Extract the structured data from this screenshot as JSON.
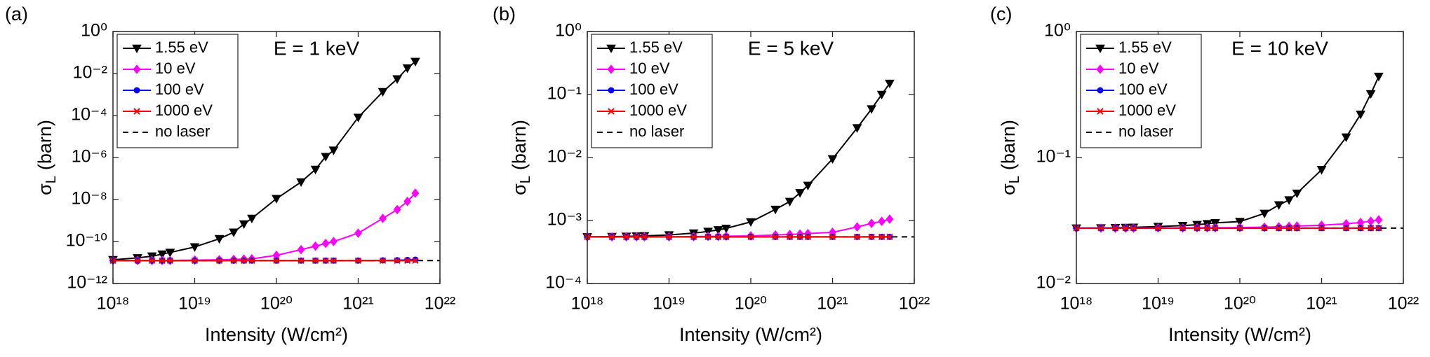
{
  "chart_data": [
    {
      "type": "line",
      "panel_label": "(a)",
      "annotation": "E = 1 keV",
      "xlabel": "Intensity (W/cm²)",
      "ylabel": {
        "symbol": "σ",
        "subscript": "L",
        "unit": "(barn)"
      },
      "xlog": true,
      "ylog": true,
      "legend": "upper left",
      "x": [
        1e+18,
        2e+18,
        3e+18,
        4e+18,
        5e+18,
        1e+19,
        2e+19,
        3e+19,
        4e+19,
        5e+19,
        1e+20,
        2e+20,
        3e+20,
        4e+20,
        5e+20,
        1e+21,
        2e+21,
        3e+21,
        4e+21,
        5e+21
      ],
      "xlim": [
        1e+18,
        1e+22
      ],
      "xticks": [
        {
          "value": 1e+18,
          "label": "10¹⁸"
        },
        {
          "value": 1e+19,
          "label": "10¹⁹"
        },
        {
          "value": 1e+20,
          "label": "10²⁰"
        },
        {
          "value": 1e+21,
          "label": "10²¹"
        },
        {
          "value": 1e+22,
          "label": "10²²"
        }
      ],
      "ylim": [
        1e-12,
        1
      ],
      "yticks": [
        {
          "value": 1e-12,
          "label": "10⁻¹²"
        },
        {
          "value": 1e-10,
          "label": "10⁻¹⁰"
        },
        {
          "value": 1e-08,
          "label": "10⁻⁸"
        },
        {
          "value": 1e-06,
          "label": "10⁻⁶"
        },
        {
          "value": 0.0001,
          "label": "10⁻⁴"
        },
        {
          "value": 0.01,
          "label": "10⁻²"
        },
        {
          "value": 1,
          "label": "10⁰"
        }
      ],
      "series": [
        {
          "name": "1.55 eV",
          "color": "#000000",
          "marker": "triangle-down",
          "values": [
            1.35e-11,
            1.66e-11,
            2e-11,
            2.5e-11,
            3e-11,
            5.5e-11,
            1.35e-10,
            2.75e-10,
            6.8e-10,
            1.26e-09,
            1.1e-08,
            6.8e-08,
            2.7e-07,
            1.1e-06,
            2.2e-06,
            8.1e-05,
            0.00135,
            0.0055,
            0.018,
            0.037
          ]
        },
        {
          "name": "10 eV",
          "color": "#ff00ff",
          "marker": "diamond",
          "values": [
            1.25e-11,
            1.25e-11,
            1.25e-11,
            1.25e-11,
            1.25e-11,
            1.3e-11,
            1.35e-11,
            1.4e-11,
            1.45e-11,
            1.5e-11,
            2.2e-11,
            4.1e-11,
            6e-11,
            8.1e-11,
            1e-10,
            2.5e-10,
            1.26e-09,
            3.3e-09,
            8.1e-09,
            2e-08
          ]
        },
        {
          "name": "100 eV",
          "color": "#0000ff",
          "marker": "circle",
          "values": [
            1.23e-11,
            1.23e-11,
            1.23e-11,
            1.23e-11,
            1.23e-11,
            1.23e-11,
            1.23e-11,
            1.23e-11,
            1.23e-11,
            1.23e-11,
            1.23e-11,
            1.23e-11,
            1.23e-11,
            1.23e-11,
            1.23e-11,
            1.24e-11,
            1.26e-11,
            1.28e-11,
            1.32e-11,
            1.36e-11
          ]
        },
        {
          "name": "1000 eV",
          "color": "#ff0000",
          "marker": "x",
          "values": [
            1.23e-11,
            1.23e-11,
            1.23e-11,
            1.23e-11,
            1.23e-11,
            1.23e-11,
            1.23e-11,
            1.23e-11,
            1.23e-11,
            1.23e-11,
            1.23e-11,
            1.23e-11,
            1.23e-11,
            1.23e-11,
            1.23e-11,
            1.23e-11,
            1.23e-11,
            1.23e-11,
            1.23e-11,
            1.23e-11
          ]
        }
      ],
      "reference": {
        "name": "no laser",
        "value": 1.23e-11,
        "color": "#000000",
        "style": "dashed"
      }
    },
    {
      "type": "line",
      "panel_label": "(b)",
      "annotation": "E = 5 keV",
      "xlabel": "Intensity (W/cm²)",
      "ylabel": {
        "symbol": "σ",
        "subscript": "L",
        "unit": "(barn)"
      },
      "xlog": true,
      "ylog": true,
      "legend": "upper left",
      "x": [
        1e+18,
        2e+18,
        3e+18,
        4e+18,
        5e+18,
        1e+19,
        2e+19,
        3e+19,
        4e+19,
        5e+19,
        1e+20,
        2e+20,
        3e+20,
        4e+20,
        5e+20,
        1e+21,
        2e+21,
        3e+21,
        4e+21,
        5e+21
      ],
      "xlim": [
        1e+18,
        1e+22
      ],
      "xticks": [
        {
          "value": 1e+18,
          "label": "10¹⁸"
        },
        {
          "value": 1e+19,
          "label": "10¹⁹"
        },
        {
          "value": 1e+20,
          "label": "10²⁰"
        },
        {
          "value": 1e+21,
          "label": "10²¹"
        },
        {
          "value": 1e+22,
          "label": "10²²"
        }
      ],
      "ylim": [
        0.0001,
        1
      ],
      "yticks": [
        {
          "value": 0.0001,
          "label": "10⁻⁴"
        },
        {
          "value": 0.001,
          "label": "10⁻³"
        },
        {
          "value": 0.01,
          "label": "10⁻²"
        },
        {
          "value": 0.1,
          "label": "10⁻¹"
        },
        {
          "value": 1,
          "label": "10⁰"
        }
      ],
      "series": [
        {
          "name": "1.55 eV",
          "color": "#000000",
          "marker": "triangle-down",
          "values": [
            0.00055,
            0.000555,
            0.00056,
            0.000565,
            0.00057,
            0.00059,
            0.00063,
            0.00067,
            0.00071,
            0.00075,
            0.00095,
            0.0015,
            0.002,
            0.00275,
            0.0036,
            0.0095,
            0.0295,
            0.059,
            0.1,
            0.15
          ]
        },
        {
          "name": "10 eV",
          "color": "#ff00ff",
          "marker": "diamond",
          "values": [
            0.00055,
            0.00055,
            0.00055,
            0.00055,
            0.00055,
            0.00055,
            0.000555,
            0.00056,
            0.00056,
            0.000565,
            0.00057,
            0.00059,
            0.0006,
            0.00061,
            0.00062,
            0.00065,
            0.00079,
            0.0009,
            0.00097,
            0.00105
          ]
        },
        {
          "name": "100 eV",
          "color": "#0000ff",
          "marker": "circle",
          "values": [
            0.00055,
            0.00055,
            0.00055,
            0.00055,
            0.00055,
            0.00055,
            0.00055,
            0.00055,
            0.00055,
            0.00055,
            0.00055,
            0.00055,
            0.00055,
            0.00055,
            0.00055,
            0.00055,
            0.00055,
            0.00055,
            0.00055,
            0.00055
          ]
        },
        {
          "name": "1000 eV",
          "color": "#ff0000",
          "marker": "x",
          "values": [
            0.00055,
            0.00055,
            0.00055,
            0.00055,
            0.00055,
            0.00055,
            0.00055,
            0.00055,
            0.00055,
            0.00055,
            0.00055,
            0.00055,
            0.00055,
            0.00055,
            0.00055,
            0.00055,
            0.00055,
            0.00055,
            0.00055,
            0.00055
          ]
        }
      ],
      "reference": {
        "name": "no laser",
        "value": 0.00055,
        "color": "#000000",
        "style": "dashed"
      }
    },
    {
      "type": "line",
      "panel_label": "(c)",
      "annotation": "E = 10 keV",
      "xlabel": "Intensity (W/cm²)",
      "ylabel": {
        "symbol": "σ",
        "subscript": "L",
        "unit": "(barn)"
      },
      "xlog": true,
      "ylog": true,
      "legend": "upper left",
      "x": [
        1e+18,
        2e+18,
        3e+18,
        4e+18,
        5e+18,
        1e+19,
        2e+19,
        3e+19,
        4e+19,
        5e+19,
        1e+20,
        2e+20,
        3e+20,
        4e+20,
        5e+20,
        1e+21,
        2e+21,
        3e+21,
        4e+21,
        5e+21
      ],
      "xlim": [
        1e+18,
        1e+22
      ],
      "xticks": [
        {
          "value": 1e+18,
          "label": "10¹⁸"
        },
        {
          "value": 1e+19,
          "label": "10¹⁹"
        },
        {
          "value": 1e+20,
          "label": "10²⁰"
        },
        {
          "value": 1e+21,
          "label": "10²¹"
        },
        {
          "value": 1e+22,
          "label": "10²²"
        }
      ],
      "ylim": [
        0.01,
        1
      ],
      "yticks": [
        {
          "value": 0.01,
          "label": "10⁻²"
        },
        {
          "value": 0.1,
          "label": "10⁻¹"
        },
        {
          "value": 1,
          "label": "10⁰"
        }
      ],
      "series": [
        {
          "name": "1.55 eV",
          "color": "#000000",
          "marker": "triangle-down",
          "values": [
            0.0275,
            0.0276,
            0.0277,
            0.0278,
            0.0279,
            0.0283,
            0.0288,
            0.0293,
            0.0298,
            0.0303,
            0.031,
            0.036,
            0.042,
            0.046,
            0.052,
            0.08,
            0.145,
            0.22,
            0.32,
            0.44
          ]
        },
        {
          "name": "10 eV",
          "color": "#ff00ff",
          "marker": "diamond",
          "values": [
            0.0275,
            0.0275,
            0.0275,
            0.0275,
            0.0275,
            0.0276,
            0.0276,
            0.0277,
            0.0277,
            0.0277,
            0.0278,
            0.028,
            0.0282,
            0.0284,
            0.0286,
            0.029,
            0.0298,
            0.0305,
            0.0312,
            0.032
          ]
        },
        {
          "name": "100 eV",
          "color": "#0000ff",
          "marker": "circle",
          "values": [
            0.0275,
            0.0275,
            0.0275,
            0.0275,
            0.0275,
            0.0275,
            0.0275,
            0.0275,
            0.0275,
            0.0275,
            0.0275,
            0.0275,
            0.0275,
            0.0275,
            0.0275,
            0.0275,
            0.0275,
            0.0275,
            0.0275,
            0.0275
          ]
        },
        {
          "name": "1000 eV",
          "color": "#ff0000",
          "marker": "x",
          "values": [
            0.0275,
            0.0275,
            0.0275,
            0.0275,
            0.0275,
            0.0275,
            0.0275,
            0.0275,
            0.0275,
            0.0275,
            0.0275,
            0.0275,
            0.0275,
            0.0275,
            0.0275,
            0.0275,
            0.0275,
            0.0275,
            0.0275,
            0.0275
          ]
        }
      ],
      "reference": {
        "name": "no laser",
        "value": 0.0275,
        "color": "#000000",
        "style": "dashed"
      }
    }
  ]
}
